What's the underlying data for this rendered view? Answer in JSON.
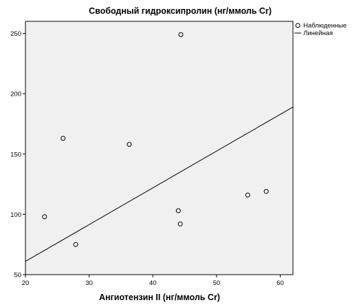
{
  "chart_data": {
    "type": "scatter",
    "title": "Свободный гидроксипролин  (нг/ммоль Cr)",
    "xlabel": "Ангиотензин II (нг/ммоль Cr)",
    "ylabel": "",
    "xlim": [
      20,
      62
    ],
    "ylim": [
      50,
      260
    ],
    "xticks": [
      20,
      30,
      40,
      50,
      60
    ],
    "yticks": [
      50,
      100,
      150,
      200,
      250
    ],
    "grid": false,
    "legend_position": "top-right",
    "series": [
      {
        "name": "Наблюденные",
        "kind": "points",
        "x": [
          23.0,
          25.9,
          27.9,
          36.3,
          44.0,
          44.3,
          44.4,
          54.9,
          57.8
        ],
        "y": [
          98,
          163,
          75,
          158,
          103,
          92,
          249,
          116,
          119
        ]
      },
      {
        "name": "Линейная",
        "kind": "line",
        "x": [
          20,
          62
        ],
        "y": [
          61,
          189
        ]
      }
    ]
  }
}
